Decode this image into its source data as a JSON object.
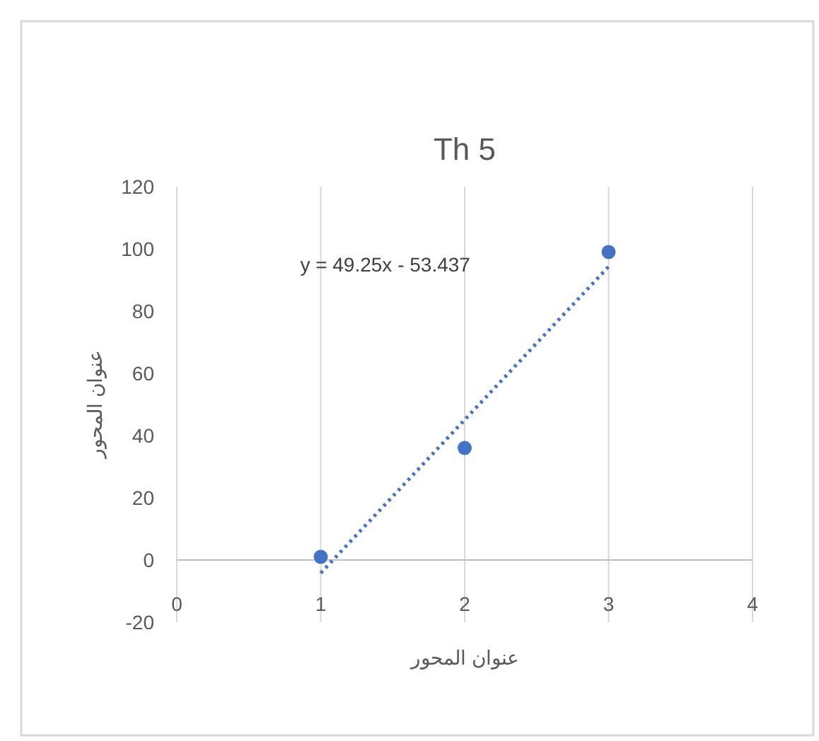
{
  "chart_data": {
    "type": "scatter",
    "title": "Th 5",
    "xlabel": "عنوان المحور",
    "ylabel": "عنوان المحور",
    "annotations": [
      "y = 49.25x - 53.437"
    ],
    "series": [
      {
        "type": "scatter",
        "color": "#4472c4",
        "x": [
          1,
          2,
          3
        ],
        "values": [
          1,
          36,
          99
        ],
        "marker": "circle"
      },
      {
        "type": "line",
        "color": "#4472c4",
        "x": [
          1,
          3
        ],
        "values": [
          -4.2,
          94.3
        ],
        "line_style": "dotted",
        "marker": "none"
      }
    ],
    "xlim": [
      0,
      4
    ],
    "xticks": [
      0,
      1,
      2,
      3,
      4
    ],
    "ylim": [
      -20,
      120
    ],
    "yticks": [
      -20,
      0,
      20,
      40,
      60,
      80,
      100,
      120
    ],
    "grid": "x"
  }
}
